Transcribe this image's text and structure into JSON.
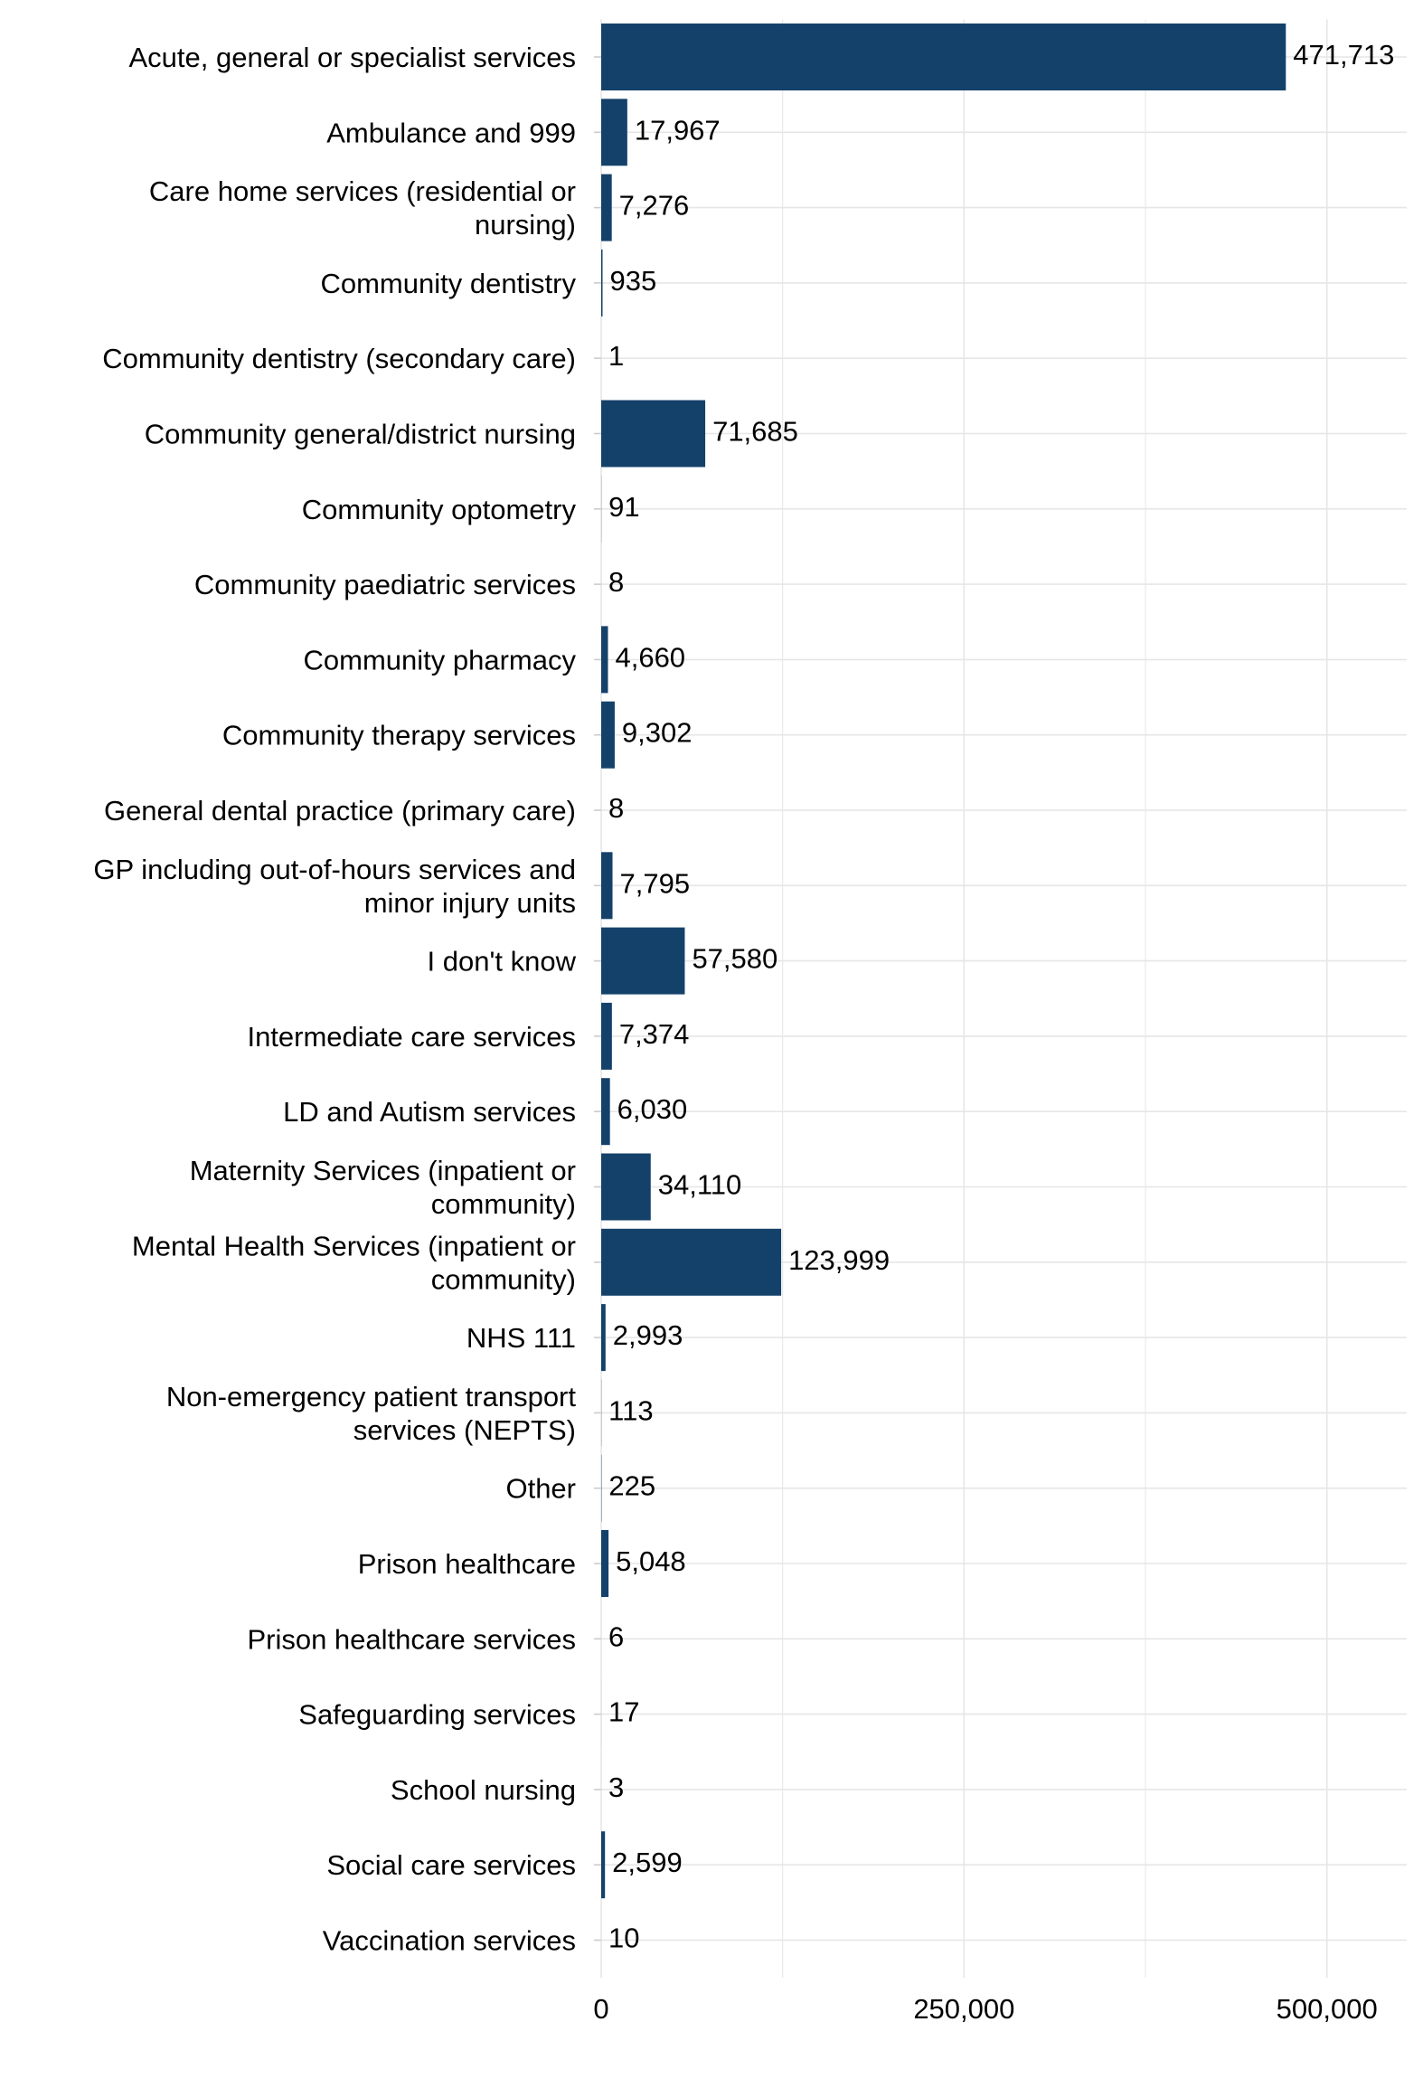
{
  "chart_data": {
    "type": "bar",
    "orientation": "horizontal",
    "title": "",
    "xlabel": "",
    "ylabel": "",
    "categories": [
      "Acute, general or specialist services",
      "Ambulance and 999",
      "Care home services (residential or nursing)",
      "Community dentistry",
      "Community dentistry (secondary care)",
      "Community general/district nursing",
      "Community optometry",
      "Community paediatric services",
      "Community pharmacy",
      "Community therapy services",
      "General dental practice (primary care)",
      "GP including out-of-hours services and minor injury units",
      "I don't know",
      "Intermediate care services",
      "LD and Autism services",
      "Maternity Services (inpatient or community)",
      "Mental Health Services (inpatient or community)",
      "NHS 111",
      "Non-emergency patient transport services (NEPTS)",
      "Other",
      "Prison healthcare",
      "Prison healthcare services",
      "Safeguarding services",
      "School nursing",
      "Social care services",
      "Vaccination services"
    ],
    "category_lines": [
      [
        "Acute, general or specialist services"
      ],
      [
        "Ambulance and 999"
      ],
      [
        "Care home services (residential or",
        "nursing)"
      ],
      [
        "Community dentistry"
      ],
      [
        "Community dentistry (secondary care)"
      ],
      [
        "Community general/district nursing"
      ],
      [
        "Community optometry"
      ],
      [
        "Community paediatric services"
      ],
      [
        "Community pharmacy"
      ],
      [
        "Community therapy services"
      ],
      [
        "General dental practice (primary care)"
      ],
      [
        "GP including out-of-hours services and",
        "minor injury units"
      ],
      [
        "I don't know"
      ],
      [
        "Intermediate care services"
      ],
      [
        "LD and Autism services"
      ],
      [
        "Maternity Services (inpatient or",
        "community)"
      ],
      [
        "Mental Health Services (inpatient or",
        "community)"
      ],
      [
        "NHS 111"
      ],
      [
        "Non-emergency patient transport",
        "services (NEPTS)"
      ],
      [
        "Other"
      ],
      [
        "Prison healthcare"
      ],
      [
        "Prison healthcare services"
      ],
      [
        "Safeguarding services"
      ],
      [
        "School nursing"
      ],
      [
        "Social care services"
      ],
      [
        "Vaccination services"
      ]
    ],
    "values": [
      471713,
      17967,
      7276,
      935,
      1,
      71685,
      91,
      8,
      4660,
      9302,
      8,
      7795,
      57580,
      7374,
      6030,
      34110,
      123999,
      2993,
      113,
      225,
      5048,
      6,
      17,
      3,
      2599,
      10
    ],
    "value_labels": [
      "471,713",
      "17,967",
      "7,276",
      "935",
      "1",
      "71,685",
      "91",
      "8",
      "4,660",
      "9,302",
      "8",
      "7,795",
      "57,580",
      "7,374",
      "6,030",
      "34,110",
      "123,999",
      "2,993",
      "113",
      "225",
      "5,048",
      "6",
      "17",
      "3",
      "2,599",
      "10"
    ],
    "xlim": [
      0,
      555000
    ],
    "x_ticks": [
      0,
      250000,
      500000
    ],
    "x_tick_labels": [
      "0",
      "250,000",
      "500,000"
    ],
    "grid": true,
    "legend": "none",
    "bar_color": "#14416a",
    "grid_color": "#e6e6e6",
    "text_color": "#000000"
  }
}
